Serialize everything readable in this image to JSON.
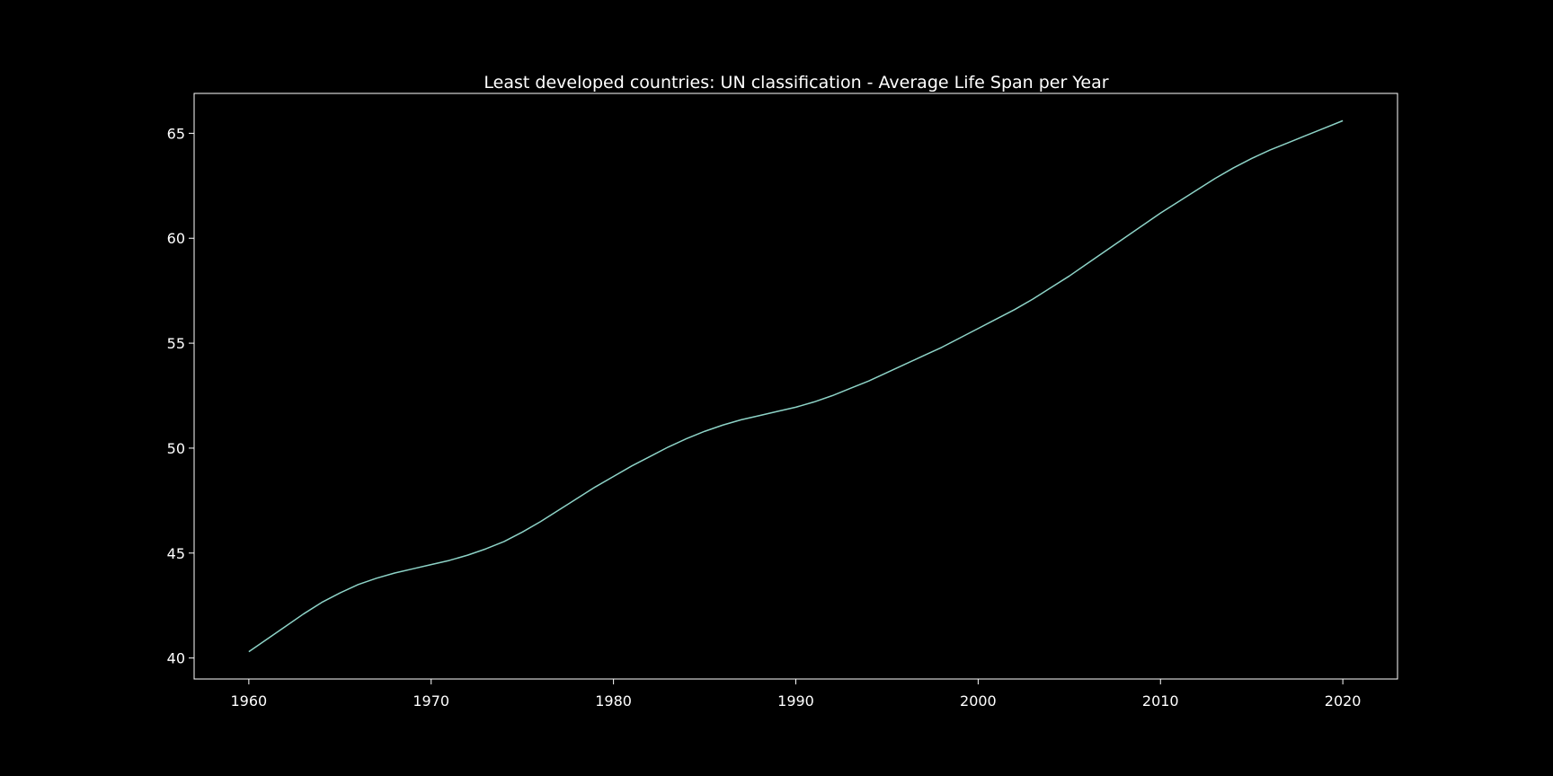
{
  "chart_data": {
    "type": "line",
    "title": "Least developed countries: UN classification - Average Life Span per Year",
    "xlabel": "",
    "ylabel": "",
    "xlim": [
      1957,
      2023
    ],
    "ylim": [
      39.0,
      66.9
    ],
    "xticks": [
      1960,
      1970,
      1980,
      1990,
      2000,
      2010,
      2020
    ],
    "yticks": [
      40,
      45,
      50,
      55,
      60,
      65
    ],
    "grid": false,
    "background": "#000000",
    "line_color": "#8dd3c7",
    "axis_color": "#ffffff",
    "series": [
      {
        "x": [
          1960,
          1961,
          1962,
          1963,
          1964,
          1965,
          1966,
          1967,
          1968,
          1969,
          1970,
          1971,
          1972,
          1973,
          1974,
          1975,
          1976,
          1977,
          1978,
          1979,
          1980,
          1981,
          1982,
          1983,
          1984,
          1985,
          1986,
          1987,
          1988,
          1989,
          1990,
          1991,
          1992,
          1993,
          1994,
          1995,
          1996,
          1997,
          1998,
          1999,
          2000,
          2001,
          2002,
          2003,
          2004,
          2005,
          2006,
          2007,
          2008,
          2009,
          2010,
          2011,
          2012,
          2013,
          2014,
          2015,
          2016,
          2017,
          2018,
          2019,
          2020
        ],
        "y": [
          40.3,
          40.9,
          41.5,
          42.1,
          42.65,
          43.1,
          43.5,
          43.8,
          44.05,
          44.25,
          44.45,
          44.65,
          44.9,
          45.2,
          45.55,
          46.0,
          46.5,
          47.05,
          47.6,
          48.15,
          48.65,
          49.15,
          49.6,
          50.05,
          50.45,
          50.8,
          51.1,
          51.35,
          51.55,
          51.75,
          51.95,
          52.2,
          52.5,
          52.85,
          53.2,
          53.6,
          54.0,
          54.4,
          54.8,
          55.25,
          55.7,
          56.15,
          56.6,
          57.1,
          57.65,
          58.2,
          58.8,
          59.4,
          60.0,
          60.6,
          61.2,
          61.75,
          62.3,
          62.85,
          63.35,
          63.8,
          64.2,
          64.55,
          64.9,
          65.25,
          65.6
        ]
      }
    ]
  }
}
